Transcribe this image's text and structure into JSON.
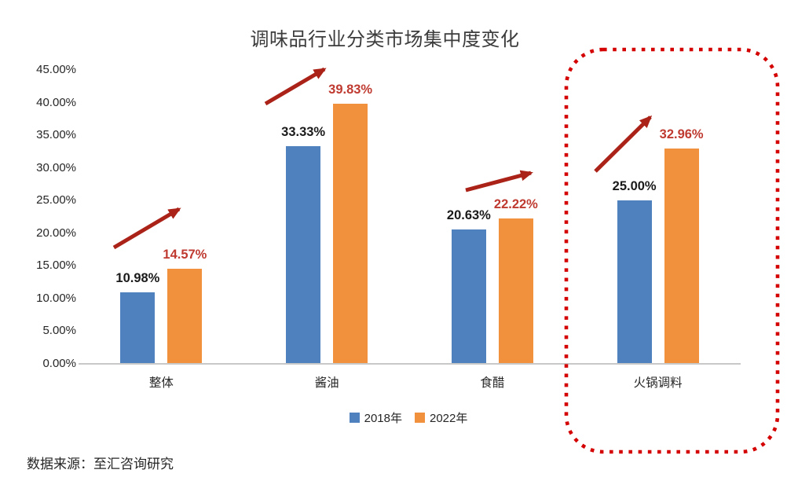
{
  "chart_data": {
    "type": "bar",
    "title": "调味品行业分类市场集中度变化",
    "categories": [
      "整体",
      "酱油",
      "食醋",
      "火锅调料"
    ],
    "series": [
      {
        "name": "2018年",
        "values": [
          10.98,
          33.33,
          20.63,
          25.0
        ],
        "value_labels": [
          "10.98%",
          "33.33%",
          "20.63%",
          "25.00%"
        ],
        "color": "#4E81BD",
        "label_color": "#1A1A1A"
      },
      {
        "name": "2022年",
        "values": [
          14.57,
          39.83,
          22.22,
          32.96
        ],
        "value_labels": [
          "14.57%",
          "39.83%",
          "22.22%",
          "32.96%"
        ],
        "color": "#F2913D",
        "label_color": "#BF3A30"
      }
    ],
    "y_axis": {
      "min": 0,
      "max": 45,
      "step": 5,
      "tick_labels": [
        "0.00%",
        "5.00%",
        "10.00%",
        "15.00%",
        "20.00%",
        "25.00%",
        "30.00%",
        "35.00%",
        "40.00%",
        "45.00%"
      ]
    },
    "legend": {
      "position": "bottom",
      "entries": [
        "2018年",
        "2022年"
      ]
    },
    "grid": false,
    "annotations": {
      "trend_arrows": [
        {
          "category": "整体",
          "meaning": "increase",
          "color": "#AB2318"
        },
        {
          "category": "酱油",
          "meaning": "increase",
          "color": "#AB2318"
        },
        {
          "category": "食醋",
          "meaning": "increase",
          "color": "#AB2318"
        },
        {
          "category": "火锅调料",
          "meaning": "increase",
          "color": "#AB2318"
        }
      ],
      "highlight_box": {
        "category": "火锅调料",
        "style": "red-dotted-rounded-rect",
        "color": "#D40000"
      }
    }
  },
  "source_note": "数据来源：至汇咨询研究"
}
